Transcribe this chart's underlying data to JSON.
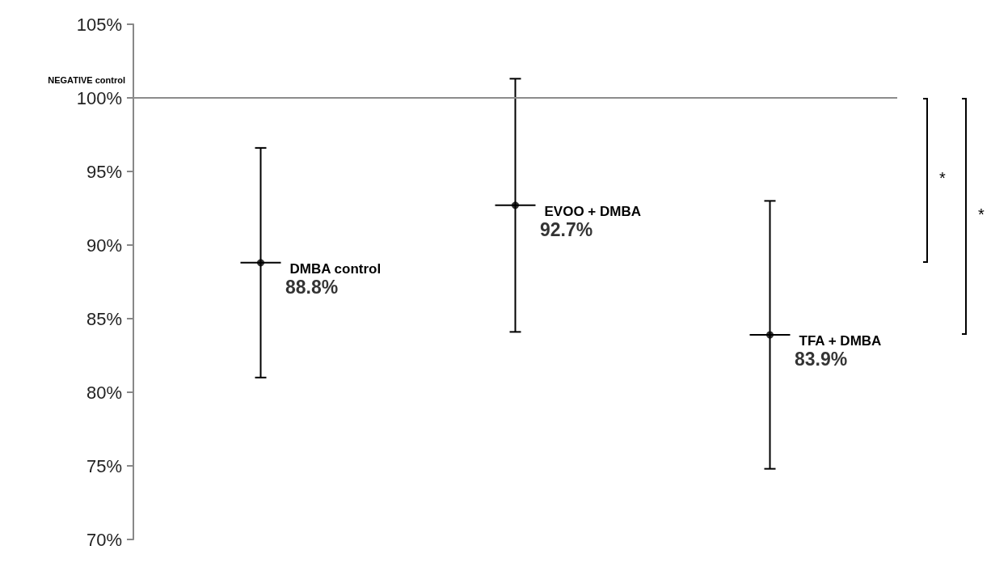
{
  "chart_data": {
    "type": "scatter",
    "categories": [
      null,
      null,
      null
    ],
    "values": [
      88.8,
      92.7,
      83.9
    ],
    "errors": [
      7.8,
      8.6,
      9.1
    ],
    "value_labels": [
      "88.8%",
      "92.7%",
      "83.9%"
    ],
    "color": "#000000",
    "ylim": [
      70,
      105
    ],
    "yticks": [
      {
        "value": 70,
        "label": "70%"
      },
      {
        "value": 75,
        "label": "75%"
      },
      {
        "value": 80,
        "label": "80%"
      },
      {
        "value": 85,
        "label": "85%"
      },
      {
        "value": 90,
        "label": "90%"
      },
      {
        "value": 95,
        "label": "95%"
      },
      {
        "value": 100,
        "label": "100%"
      },
      {
        "value": 105,
        "label": "105%"
      }
    ],
    "ref_lines": [
      {
        "axis": "y",
        "value": 100,
        "label": "NEGATIVE control",
        "color": "#8c8c8c"
      }
    ],
    "annotations": [
      "DMBA control",
      "EVOO + DMBA",
      "TFA + DMBA",
      "*",
      "*"
    ],
    "marker": "circle",
    "grid": false,
    "tick_labels": "y"
  }
}
